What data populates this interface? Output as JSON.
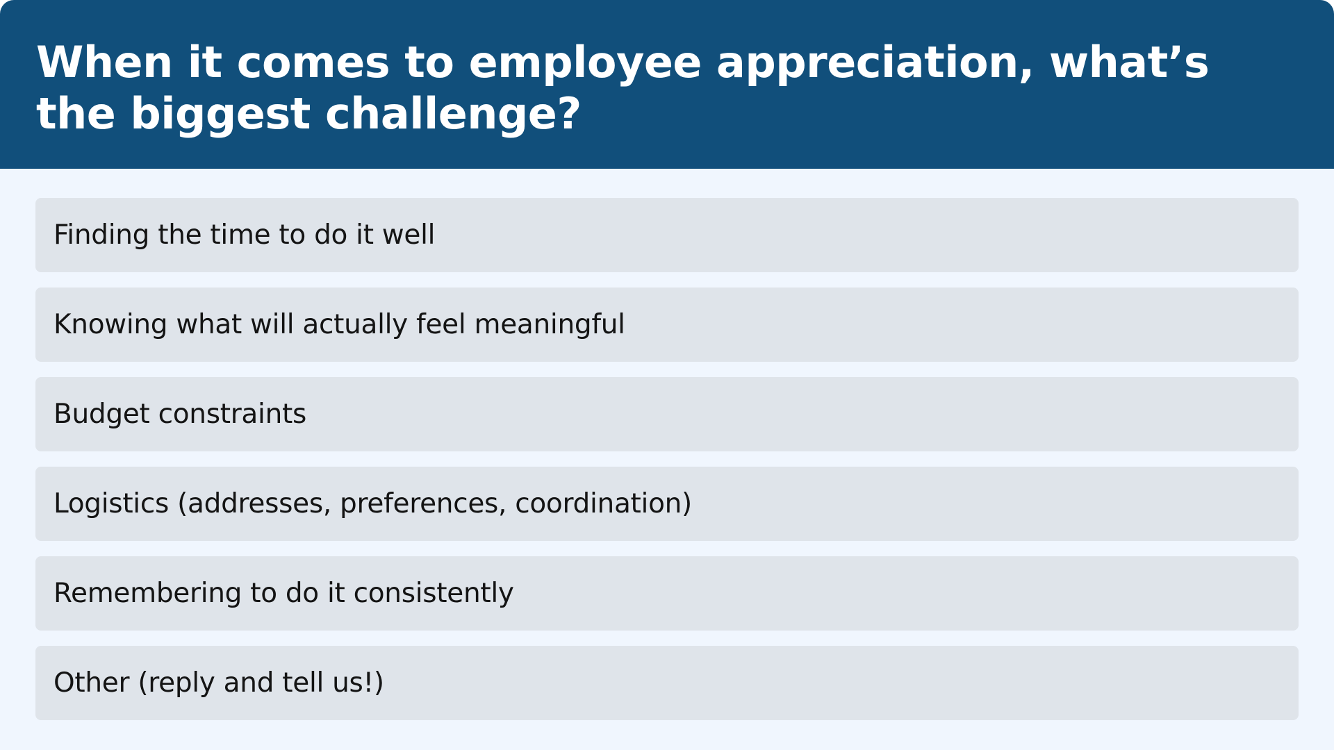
{
  "poll": {
    "question": "When it comes to employee appreciation, what’s the biggest challenge?",
    "options": [
      {
        "label": "Finding the time to do it well"
      },
      {
        "label": "Knowing what will actually feel meaningful"
      },
      {
        "label": "Budget constraints"
      },
      {
        "label": "Logistics (addresses, preferences, coordination)"
      },
      {
        "label": "Remembering to do it consistently"
      },
      {
        "label": "Other (reply and tell us!)"
      }
    ]
  },
  "colors": {
    "header_background": "#114f7b",
    "page_background": "#f0f6fe",
    "option_background": "#dfe4ea",
    "option_text": "#141414",
    "title_text": "#ffffff"
  }
}
